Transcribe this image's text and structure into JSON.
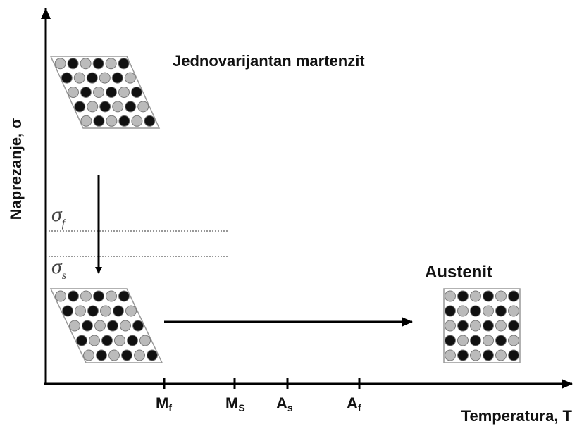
{
  "phases": {
    "top": "Jednovarijantan martenzit",
    "right": "Austenit"
  },
  "axes": {
    "y_label": "Naprezanje, σ",
    "x_label": "Temperatura, T"
  },
  "stress_levels": [
    {
      "main": "σ",
      "sub": "f"
    },
    {
      "main": "σ",
      "sub": "s"
    }
  ],
  "temperature_ticks": [
    {
      "main": "M",
      "sub": "f"
    },
    {
      "main": "M",
      "sub": "S"
    },
    {
      "main": "A",
      "sub": "s"
    },
    {
      "main": "A",
      "sub": "f"
    }
  ]
}
